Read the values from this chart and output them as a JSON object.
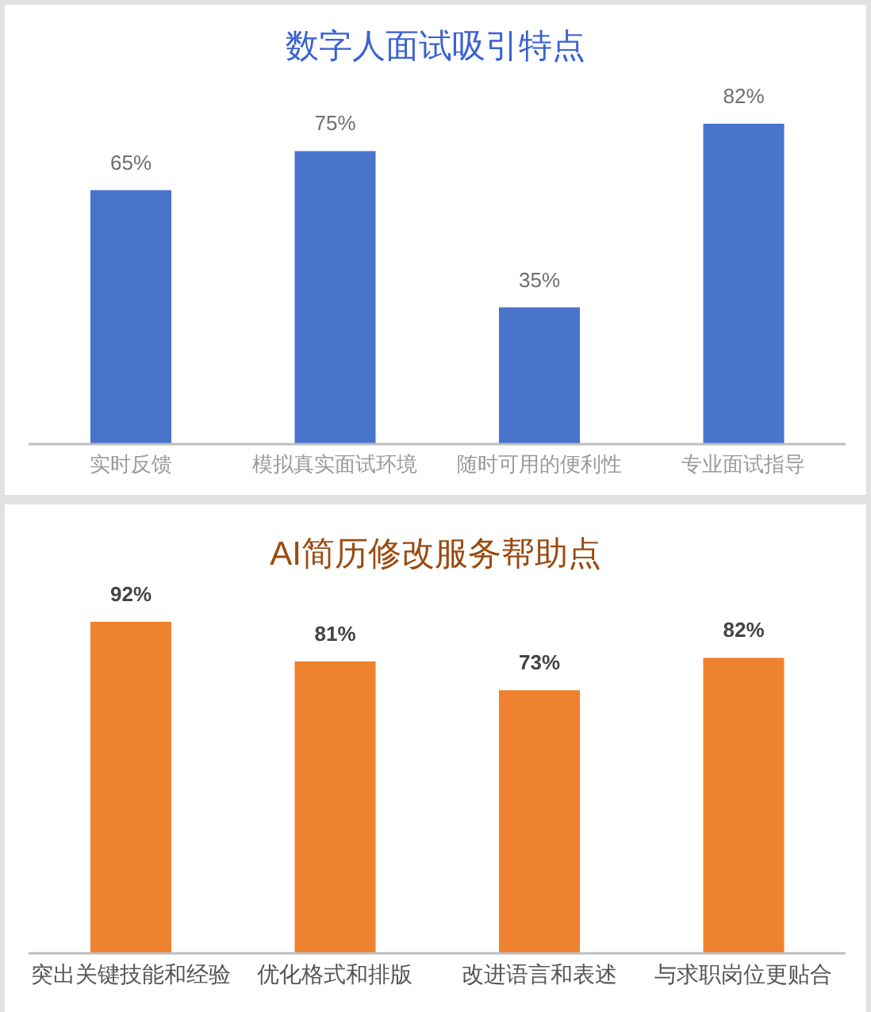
{
  "chart_data": [
    {
      "type": "bar",
      "title": "数字人面试吸引特点",
      "categories": [
        "实时反馈",
        "模拟真实面试环境",
        "随时可用的便利性",
        "专业面试指导"
      ],
      "values": [
        65,
        75,
        35,
        82
      ],
      "value_labels": [
        "65%",
        "75%",
        "35%",
        "82%"
      ],
      "color": "#4874cb",
      "tick_labels": "x"
    },
    {
      "type": "bar",
      "title": "AI简历修改服务帮助点",
      "categories": [
        "突出关键技能和经验",
        "优化格式和排版",
        "改进语言和表述",
        "与求职岗位更贴合"
      ],
      "values": [
        92,
        81,
        73,
        82
      ],
      "value_labels": [
        "92%",
        "81%",
        "73%",
        "82%"
      ],
      "color": "#ee822f",
      "tick_labels": "x"
    }
  ]
}
